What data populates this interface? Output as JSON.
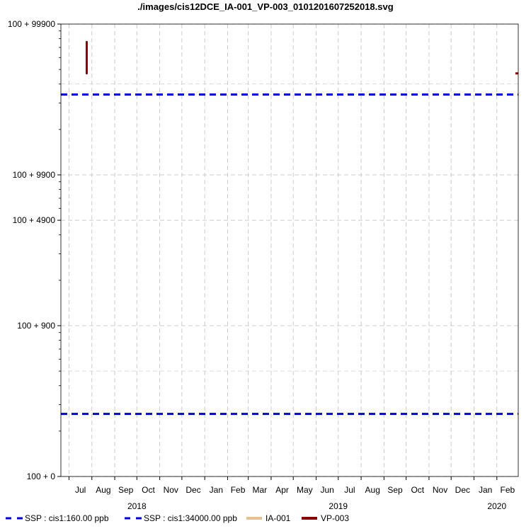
{
  "chart_data": {
    "type": "line",
    "title": "./images/cis12DCE_IA-001_VP-003_0101201607252018.svg",
    "xlabel": "",
    "ylabel": "",
    "yscale": "log (value + 100)",
    "ylim": [
      0,
      99900
    ],
    "xlim": [
      "2018-06-20",
      "2020-03-01"
    ],
    "grid": true,
    "y_ticks": [
      {
        "value": 99900,
        "label": "100 + 99900"
      },
      {
        "value": 9900,
        "label": "100 + 9900"
      },
      {
        "value": 4900,
        "label": "100 + 4900"
      },
      {
        "value": 900,
        "label": "100 + 900"
      },
      {
        "value": 0,
        "label": "100 + 0"
      }
    ],
    "y_minor_values": [
      400,
      40000
    ],
    "x_month_ticks": [
      {
        "date": "2018-07-01",
        "label": "Jul"
      },
      {
        "date": "2018-08-01",
        "label": "Aug"
      },
      {
        "date": "2018-09-01",
        "label": "Sep"
      },
      {
        "date": "2018-10-01",
        "label": "Oct"
      },
      {
        "date": "2018-11-01",
        "label": "Nov"
      },
      {
        "date": "2018-12-01",
        "label": "Dec"
      },
      {
        "date": "2019-01-01",
        "label": "Jan"
      },
      {
        "date": "2019-02-01",
        "label": "Feb"
      },
      {
        "date": "2019-03-01",
        "label": "Mar"
      },
      {
        "date": "2019-04-01",
        "label": "Apr"
      },
      {
        "date": "2019-05-01",
        "label": "May"
      },
      {
        "date": "2019-06-01",
        "label": "Jun"
      },
      {
        "date": "2019-07-01",
        "label": "Jul"
      },
      {
        "date": "2019-08-01",
        "label": "Aug"
      },
      {
        "date": "2019-09-01",
        "label": "Sep"
      },
      {
        "date": "2019-10-01",
        "label": "Oct"
      },
      {
        "date": "2019-11-01",
        "label": "Nov"
      },
      {
        "date": "2019-12-01",
        "label": "Dec"
      },
      {
        "date": "2020-01-01",
        "label": "Jan"
      },
      {
        "date": "2020-02-01",
        "label": "Feb"
      }
    ],
    "x_year_labels": [
      {
        "date": "2018-10-01",
        "label": "2018"
      },
      {
        "date": "2019-07-01",
        "label": "2019"
      },
      {
        "date": "2020-02-01",
        "label": "2020"
      }
    ],
    "series": [
      {
        "name": "SSP : cis1:160.00 ppb",
        "style": "dashed",
        "color": "#0000dd",
        "kind": "hline",
        "value": 160
      },
      {
        "name": "SSP : cis1:34000.00 ppb",
        "style": "dashed",
        "color": "#0000dd",
        "kind": "hline",
        "value": 34000
      },
      {
        "name": "IA-001",
        "style": "solid",
        "color": "#e8bf8e",
        "kind": "line",
        "points": []
      },
      {
        "name": "VP-003",
        "style": "solid",
        "color": "#8b0000",
        "kind": "line",
        "points": [
          [
            "2018-07-25",
            76000
          ],
          [
            "2018-07-25",
            47000
          ]
        ],
        "marker_points": [
          [
            "2020-02-28",
            47000
          ]
        ]
      }
    ]
  }
}
